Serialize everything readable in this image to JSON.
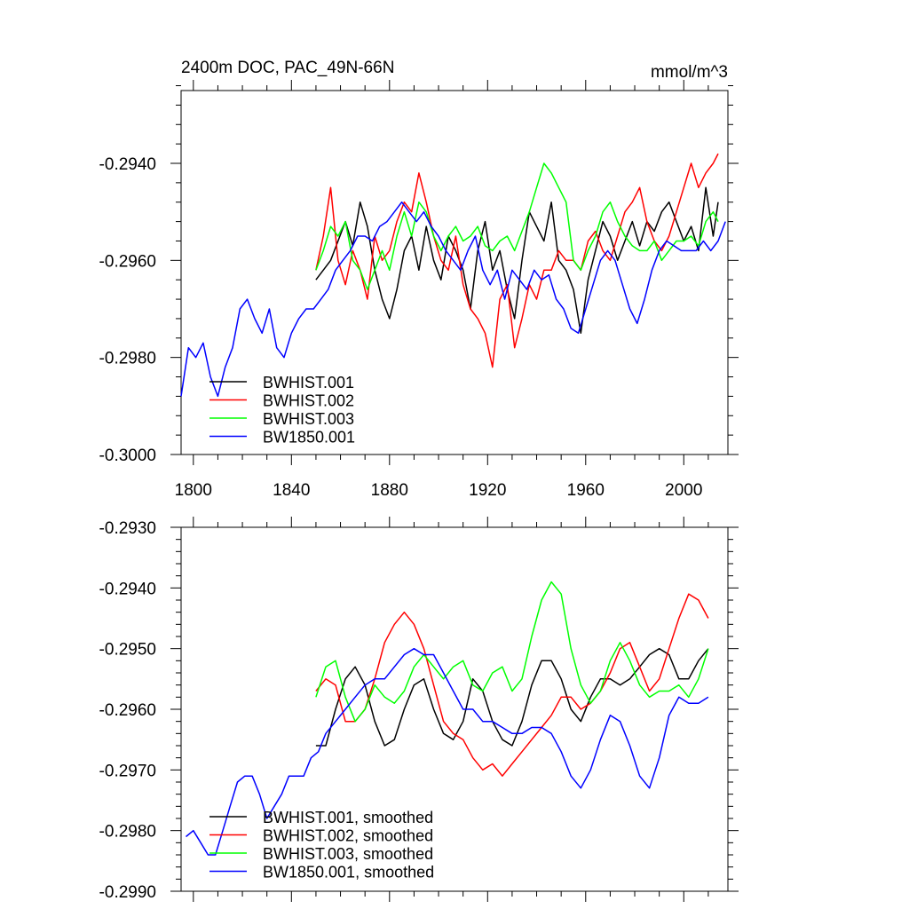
{
  "colors": {
    "BWHIST.001": "#000000",
    "BWHIST.002": "#ff0000",
    "BWHIST.003": "#00ff00",
    "BW1850.001": "#0000ff",
    "axis": "#000000",
    "background": "#ffffff"
  },
  "chart_data": [
    {
      "type": "line",
      "title": "2400m DOC, PAC_49N-66N",
      "units": "mmol/m^3",
      "xlabel": "",
      "ylabel": "",
      "xlim": [
        1795,
        2018
      ],
      "ylim": [
        -0.3,
        -0.2925
      ],
      "xticks": [
        1800,
        1840,
        1880,
        1920,
        1960,
        2000
      ],
      "xtick_labels": [
        "1800",
        "1840",
        "1880",
        "1920",
        "1960",
        "2000"
      ],
      "yticks": [
        -0.3,
        -0.298,
        -0.296,
        -0.294
      ],
      "ytick_labels": [
        "-0.3000",
        "-0.2980",
        "-0.2960",
        "-0.2940"
      ],
      "legend_position": "bottom-left",
      "legend": [
        "BWHIST.001",
        "BWHIST.002",
        "BWHIST.003",
        "BW1850.001"
      ],
      "series": [
        {
          "name": "BWHIST.001",
          "color": "#000000",
          "x": [
            1850,
            1853,
            1856,
            1859,
            1862,
            1865,
            1868,
            1871,
            1874,
            1877,
            1880,
            1883,
            1886,
            1889,
            1892,
            1895,
            1898,
            1901,
            1904,
            1907,
            1910,
            1913,
            1916,
            1919,
            1922,
            1925,
            1928,
            1931,
            1934,
            1937,
            1940,
            1943,
            1946,
            1949,
            1952,
            1955,
            1958,
            1961,
            1964,
            1967,
            1970,
            1973,
            1976,
            1979,
            1982,
            1985,
            1988,
            1991,
            1994,
            1997,
            2000,
            2003,
            2006,
            2009,
            2012,
            2014
          ],
          "y": [
            -0.2964,
            -0.2962,
            -0.296,
            -0.2956,
            -0.2952,
            -0.2957,
            -0.2948,
            -0.2953,
            -0.2962,
            -0.2968,
            -0.2972,
            -0.2966,
            -0.2958,
            -0.2955,
            -0.2962,
            -0.2953,
            -0.296,
            -0.2964,
            -0.2955,
            -0.2958,
            -0.2962,
            -0.297,
            -0.2958,
            -0.2952,
            -0.2962,
            -0.2958,
            -0.2966,
            -0.2972,
            -0.296,
            -0.295,
            -0.2953,
            -0.2956,
            -0.2948,
            -0.296,
            -0.2962,
            -0.2966,
            -0.2975,
            -0.2964,
            -0.2958,
            -0.2952,
            -0.2955,
            -0.296,
            -0.2956,
            -0.2952,
            -0.2957,
            -0.2952,
            -0.2954,
            -0.295,
            -0.2948,
            -0.2952,
            -0.2956,
            -0.2953,
            -0.2958,
            -0.2945,
            -0.2955,
            -0.2948
          ]
        },
        {
          "name": "BWHIST.002",
          "color": "#ff0000",
          "x": [
            1850,
            1853,
            1856,
            1859,
            1862,
            1865,
            1868,
            1871,
            1874,
            1877,
            1880,
            1883,
            1886,
            1889,
            1892,
            1895,
            1898,
            1901,
            1904,
            1907,
            1910,
            1913,
            1916,
            1919,
            1922,
            1925,
            1928,
            1931,
            1934,
            1937,
            1940,
            1943,
            1946,
            1949,
            1952,
            1955,
            1958,
            1961,
            1964,
            1967,
            1970,
            1973,
            1976,
            1979,
            1982,
            1985,
            1988,
            1991,
            1994,
            1997,
            2000,
            2003,
            2006,
            2009,
            2012,
            2014
          ],
          "y": [
            -0.2962,
            -0.2955,
            -0.2945,
            -0.296,
            -0.2965,
            -0.2958,
            -0.2962,
            -0.2968,
            -0.2955,
            -0.296,
            -0.2958,
            -0.2952,
            -0.2948,
            -0.295,
            -0.2942,
            -0.2948,
            -0.2955,
            -0.296,
            -0.2962,
            -0.2955,
            -0.2965,
            -0.297,
            -0.2972,
            -0.2975,
            -0.2982,
            -0.2968,
            -0.2965,
            -0.2978,
            -0.2972,
            -0.2965,
            -0.2968,
            -0.2962,
            -0.2962,
            -0.2958,
            -0.296,
            -0.296,
            -0.2962,
            -0.2956,
            -0.2954,
            -0.2958,
            -0.296,
            -0.2955,
            -0.295,
            -0.2948,
            -0.2945,
            -0.2952,
            -0.2956,
            -0.2958,
            -0.2955,
            -0.295,
            -0.2945,
            -0.294,
            -0.2945,
            -0.2942,
            -0.294,
            -0.2938
          ]
        },
        {
          "name": "BWHIST.003",
          "color": "#00ff00",
          "x": [
            1850,
            1853,
            1856,
            1859,
            1862,
            1865,
            1868,
            1871,
            1874,
            1877,
            1880,
            1883,
            1886,
            1889,
            1892,
            1895,
            1898,
            1901,
            1904,
            1907,
            1910,
            1913,
            1916,
            1919,
            1922,
            1925,
            1928,
            1931,
            1934,
            1937,
            1940,
            1943,
            1946,
            1949,
            1952,
            1955,
            1958,
            1961,
            1964,
            1967,
            1970,
            1973,
            1976,
            1979,
            1982,
            1985,
            1988,
            1991,
            1994,
            1997,
            2000,
            2003,
            2006,
            2009,
            2012,
            2014
          ],
          "y": [
            -0.2962,
            -0.2958,
            -0.2953,
            -0.2955,
            -0.2952,
            -0.296,
            -0.2962,
            -0.2966,
            -0.2962,
            -0.2958,
            -0.2962,
            -0.2955,
            -0.295,
            -0.2955,
            -0.2948,
            -0.295,
            -0.2955,
            -0.2958,
            -0.2955,
            -0.2953,
            -0.2956,
            -0.2955,
            -0.2953,
            -0.2957,
            -0.2958,
            -0.2956,
            -0.2955,
            -0.2958,
            -0.2954,
            -0.295,
            -0.2945,
            -0.294,
            -0.2942,
            -0.2945,
            -0.2948,
            -0.296,
            -0.2962,
            -0.2958,
            -0.2955,
            -0.295,
            -0.2948,
            -0.2952,
            -0.2955,
            -0.2957,
            -0.2958,
            -0.2958,
            -0.2956,
            -0.296,
            -0.2958,
            -0.2956,
            -0.2956,
            -0.2955,
            -0.2957,
            -0.2952,
            -0.295,
            -0.2952
          ]
        },
        {
          "name": "BW1850.001",
          "color": "#0000ff",
          "x": [
            1795,
            1798,
            1801,
            1804,
            1807,
            1810,
            1813,
            1816,
            1819,
            1822,
            1825,
            1828,
            1831,
            1834,
            1837,
            1840,
            1843,
            1846,
            1849,
            1852,
            1855,
            1858,
            1861,
            1864,
            1867,
            1870,
            1873,
            1876,
            1879,
            1882,
            1885,
            1888,
            1891,
            1894,
            1897,
            1900,
            1903,
            1906,
            1909,
            1912,
            1915,
            1918,
            1921,
            1924,
            1927,
            1930,
            1933,
            1936,
            1939,
            1942,
            1945,
            1948,
            1951,
            1954,
            1957,
            1960,
            1963,
            1966,
            1969,
            1972,
            1975,
            1978,
            1981,
            1984,
            1987,
            1990,
            1993,
            1996,
            1999,
            2002,
            2005,
            2008,
            2011,
            2014,
            2017
          ],
          "y": [
            -0.2988,
            -0.2978,
            -0.298,
            -0.2977,
            -0.2984,
            -0.2988,
            -0.2982,
            -0.2978,
            -0.297,
            -0.2968,
            -0.2972,
            -0.2975,
            -0.297,
            -0.2978,
            -0.298,
            -0.2975,
            -0.2972,
            -0.297,
            -0.297,
            -0.2968,
            -0.2966,
            -0.2962,
            -0.296,
            -0.2958,
            -0.2955,
            -0.2955,
            -0.2956,
            -0.2953,
            -0.2952,
            -0.295,
            -0.2948,
            -0.295,
            -0.2952,
            -0.295,
            -0.2953,
            -0.2955,
            -0.2958,
            -0.296,
            -0.2962,
            -0.2958,
            -0.2955,
            -0.2962,
            -0.2965,
            -0.2962,
            -0.2968,
            -0.2962,
            -0.2964,
            -0.2966,
            -0.2962,
            -0.2964,
            -0.2963,
            -0.2968,
            -0.297,
            -0.2974,
            -0.2975,
            -0.297,
            -0.2965,
            -0.296,
            -0.2958,
            -0.296,
            -0.2965,
            -0.297,
            -0.2973,
            -0.2968,
            -0.2962,
            -0.2958,
            -0.2956,
            -0.2957,
            -0.2958,
            -0.2958,
            -0.2958,
            -0.2956,
            -0.2958,
            -0.2956,
            -0.2952
          ]
        }
      ]
    },
    {
      "type": "line",
      "title": "",
      "xlabel": "",
      "ylabel": "",
      "xlim": [
        1795,
        2018
      ],
      "ylim": [
        -0.299,
        -0.293
      ],
      "xticks": [
        1800,
        1840,
        1880,
        1920,
        1960,
        2000
      ],
      "yticks": [
        -0.299,
        -0.298,
        -0.297,
        -0.296,
        -0.295,
        -0.294,
        -0.293
      ],
      "ytick_labels": [
        "-0.2990",
        "-0.2980",
        "-0.2970",
        "-0.2960",
        "-0.2950",
        "-0.2940",
        "-0.2930"
      ],
      "legend_position": "bottom-left",
      "legend": [
        "BWHIST.001, smoothed",
        "BWHIST.002, smoothed",
        "BWHIST.003, smoothed",
        "BW1850.001, smoothed"
      ],
      "series": [
        {
          "name": "BWHIST.001, smoothed",
          "color": "#000000",
          "x": [
            1850,
            1854,
            1858,
            1862,
            1866,
            1870,
            1874,
            1878,
            1882,
            1886,
            1890,
            1894,
            1898,
            1902,
            1906,
            1910,
            1914,
            1918,
            1922,
            1926,
            1930,
            1934,
            1938,
            1942,
            1946,
            1950,
            1954,
            1958,
            1962,
            1966,
            1970,
            1974,
            1978,
            1982,
            1986,
            1990,
            1994,
            1998,
            2002,
            2006,
            2010
          ],
          "y": [
            -0.2966,
            -0.2966,
            -0.296,
            -0.2955,
            -0.2953,
            -0.2956,
            -0.2962,
            -0.2966,
            -0.2965,
            -0.296,
            -0.2956,
            -0.2955,
            -0.296,
            -0.2964,
            -0.2965,
            -0.2962,
            -0.2955,
            -0.2957,
            -0.2962,
            -0.2965,
            -0.2966,
            -0.2962,
            -0.2956,
            -0.2952,
            -0.2952,
            -0.2955,
            -0.296,
            -0.2962,
            -0.2958,
            -0.2955,
            -0.2955,
            -0.2956,
            -0.2955,
            -0.2953,
            -0.2951,
            -0.295,
            -0.2951,
            -0.2955,
            -0.2955,
            -0.2952,
            -0.295
          ]
        },
        {
          "name": "BWHIST.002, smoothed",
          "color": "#ff0000",
          "x": [
            1850,
            1854,
            1858,
            1862,
            1866,
            1870,
            1874,
            1878,
            1882,
            1886,
            1890,
            1894,
            1898,
            1902,
            1906,
            1910,
            1914,
            1918,
            1922,
            1926,
            1930,
            1934,
            1938,
            1942,
            1946,
            1950,
            1954,
            1958,
            1962,
            1966,
            1970,
            1974,
            1978,
            1982,
            1986,
            1990,
            1994,
            1998,
            2002,
            2006,
            2010
          ],
          "y": [
            -0.2957,
            -0.2955,
            -0.2956,
            -0.2962,
            -0.2962,
            -0.296,
            -0.2955,
            -0.2949,
            -0.2946,
            -0.2944,
            -0.2946,
            -0.295,
            -0.2956,
            -0.2962,
            -0.2964,
            -0.2965,
            -0.2968,
            -0.297,
            -0.2969,
            -0.2971,
            -0.2969,
            -0.2967,
            -0.2965,
            -0.2963,
            -0.2961,
            -0.2958,
            -0.2958,
            -0.296,
            -0.2959,
            -0.2957,
            -0.2954,
            -0.295,
            -0.2949,
            -0.2953,
            -0.2957,
            -0.2955,
            -0.295,
            -0.2945,
            -0.2941,
            -0.2942,
            -0.2945
          ]
        },
        {
          "name": "BWHIST.003, smoothed",
          "color": "#00ff00",
          "x": [
            1850,
            1854,
            1858,
            1862,
            1866,
            1870,
            1874,
            1878,
            1882,
            1886,
            1890,
            1894,
            1898,
            1902,
            1906,
            1910,
            1914,
            1918,
            1922,
            1926,
            1930,
            1934,
            1938,
            1942,
            1946,
            1950,
            1954,
            1958,
            1962,
            1966,
            1970,
            1974,
            1978,
            1982,
            1986,
            1990,
            1994,
            1998,
            2002,
            2006,
            2010
          ],
          "y": [
            -0.2958,
            -0.2953,
            -0.2952,
            -0.2958,
            -0.2962,
            -0.296,
            -0.2956,
            -0.2958,
            -0.2959,
            -0.2957,
            -0.2953,
            -0.2951,
            -0.2953,
            -0.2955,
            -0.2953,
            -0.2952,
            -0.2956,
            -0.2957,
            -0.2954,
            -0.2953,
            -0.2957,
            -0.2955,
            -0.2948,
            -0.2942,
            -0.2939,
            -0.2941,
            -0.295,
            -0.2956,
            -0.2959,
            -0.2957,
            -0.2952,
            -0.2949,
            -0.2952,
            -0.2956,
            -0.2958,
            -0.2957,
            -0.2957,
            -0.2956,
            -0.2958,
            -0.2955,
            -0.295
          ]
        },
        {
          "name": "BW1850.001, smoothed",
          "color": "#0000ff",
          "x": [
            1797,
            1800,
            1803,
            1806,
            1809,
            1812,
            1815,
            1818,
            1821,
            1824,
            1827,
            1830,
            1833,
            1836,
            1839,
            1842,
            1845,
            1848,
            1851,
            1854,
            1858,
            1862,
            1866,
            1870,
            1874,
            1878,
            1882,
            1886,
            1890,
            1894,
            1898,
            1902,
            1906,
            1910,
            1914,
            1918,
            1922,
            1926,
            1930,
            1934,
            1938,
            1942,
            1946,
            1950,
            1954,
            1958,
            1962,
            1966,
            1970,
            1974,
            1978,
            1982,
            1986,
            1990,
            1994,
            1998,
            2002,
            2006,
            2010
          ],
          "y": [
            -0.2981,
            -0.298,
            -0.2982,
            -0.2984,
            -0.2984,
            -0.298,
            -0.2976,
            -0.2972,
            -0.2971,
            -0.2971,
            -0.2974,
            -0.2978,
            -0.2976,
            -0.2974,
            -0.2971,
            -0.2971,
            -0.2971,
            -0.2968,
            -0.2967,
            -0.2964,
            -0.2962,
            -0.296,
            -0.2958,
            -0.2956,
            -0.2955,
            -0.2955,
            -0.2953,
            -0.2951,
            -0.295,
            -0.2951,
            -0.2951,
            -0.2954,
            -0.2957,
            -0.296,
            -0.296,
            -0.2962,
            -0.2962,
            -0.2963,
            -0.2964,
            -0.2964,
            -0.2963,
            -0.2963,
            -0.2964,
            -0.2967,
            -0.2971,
            -0.2973,
            -0.297,
            -0.2965,
            -0.2961,
            -0.2962,
            -0.2966,
            -0.2971,
            -0.2973,
            -0.2968,
            -0.2961,
            -0.2958,
            -0.2959,
            -0.2959,
            -0.2958
          ]
        }
      ]
    }
  ]
}
